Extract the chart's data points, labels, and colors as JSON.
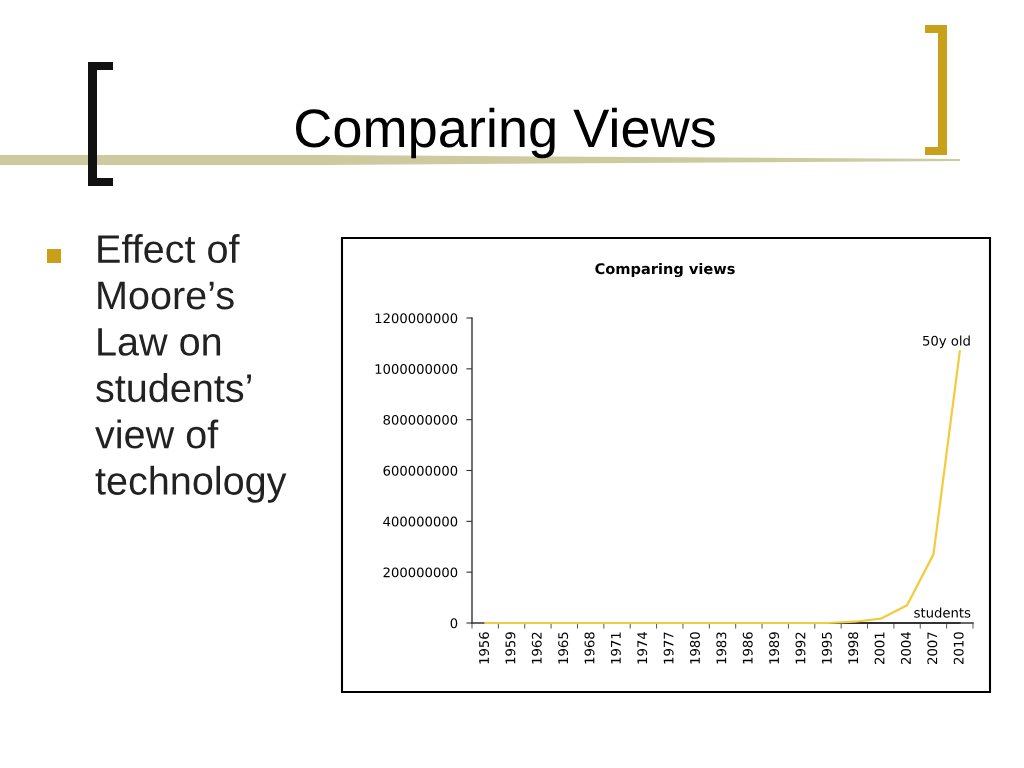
{
  "chart_data": {
    "type": "line",
    "title": "Comparing views",
    "annotations": [
      "Comparing Views",
      "Effect of\nMoore’s\nLaw on\nstudents’\nview of\ntechnology"
    ],
    "categories": [
      "1956",
      "1959",
      "1962",
      "1965",
      "1968",
      "1971",
      "1974",
      "1977",
      "1980",
      "1983",
      "1986",
      "1989",
      "1992",
      "1995",
      "1998",
      "2001",
      "2004",
      "2007",
      "2010"
    ],
    "series": [
      {
        "name": "students",
        "color": "#333333",
        "values": [
          null,
          null,
          null,
          null,
          null,
          null,
          null,
          null,
          null,
          null,
          null,
          null,
          null,
          0,
          0,
          0,
          0,
          0,
          0
        ]
      },
      {
        "name": "50y old",
        "color": "#f2cc3d",
        "values": [
          0,
          0,
          0,
          0,
          0,
          0,
          0,
          0,
          0,
          0,
          0,
          0,
          0,
          0,
          5000000,
          17000000,
          70000000,
          270000000,
          1070000000
        ]
      }
    ],
    "ylim": [
      0,
      1200000000
    ],
    "yticks": [
      0,
      200000000,
      400000000,
      600000000,
      800000000,
      1000000000,
      1200000000
    ],
    "grid": false,
    "legend": false,
    "marker": "none",
    "line_style": "solid"
  }
}
